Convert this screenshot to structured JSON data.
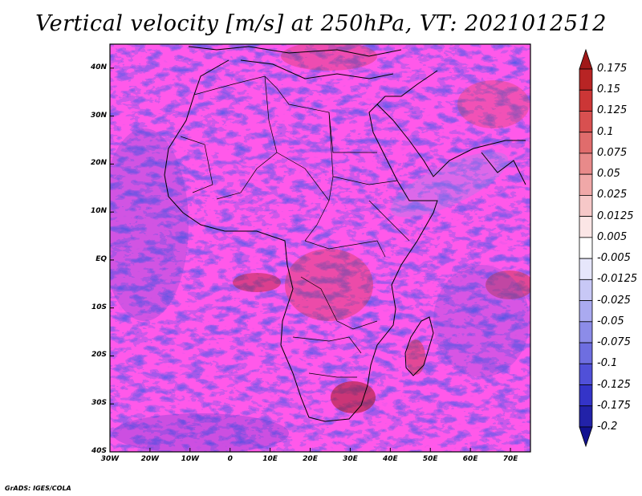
{
  "title": "Vertical velocity [m/s] at 250hPa, VT: 2021012512",
  "footer": "GrADS: IGES/COLA",
  "map": {
    "region": "Africa",
    "lat_range": [
      -40,
      45
    ],
    "lon_range": [
      -30,
      75
    ],
    "lat_ticks": [
      {
        "value": 40,
        "label": "40N"
      },
      {
        "value": 30,
        "label": "30N"
      },
      {
        "value": 20,
        "label": "20N"
      },
      {
        "value": 10,
        "label": "10N"
      },
      {
        "value": 0,
        "label": "EQ"
      },
      {
        "value": -10,
        "label": "10S"
      },
      {
        "value": -20,
        "label": "20S"
      },
      {
        "value": -30,
        "label": "30S"
      },
      {
        "value": -40,
        "label": "40S"
      }
    ],
    "lon_ticks": [
      {
        "value": -30,
        "label": "30W"
      },
      {
        "value": -20,
        "label": "20W"
      },
      {
        "value": -10,
        "label": "10W"
      },
      {
        "value": 0,
        "label": "0"
      },
      {
        "value": 10,
        "label": "10E"
      },
      {
        "value": 20,
        "label": "20E"
      },
      {
        "value": 30,
        "label": "30E"
      },
      {
        "value": 40,
        "label": "40E"
      },
      {
        "value": 50,
        "label": "50E"
      },
      {
        "value": 60,
        "label": "60E"
      },
      {
        "value": 70,
        "label": "70E"
      }
    ]
  },
  "colorbar": {
    "labels": [
      "0.175",
      "0.15",
      "0.125",
      "0.1",
      "0.075",
      "0.05",
      "0.025",
      "0.0125",
      "0.005",
      "-0.005",
      "-0.0125",
      "-0.025",
      "-0.05",
      "-0.075",
      "-0.1",
      "-0.125",
      "-0.175",
      "-0.2"
    ],
    "colors": [
      "#a01818",
      "#b82424",
      "#cc3636",
      "#d85050",
      "#e06c6c",
      "#e88a8a",
      "#f0a8a8",
      "#f6c8c8",
      "#fbe6e6",
      "#ffffff",
      "#e6e6fb",
      "#c8c8f6",
      "#aaaaf0",
      "#8c8ce8",
      "#6e6ee0",
      "#5050d8",
      "#3434c8",
      "#2222a8",
      "#121290"
    ]
  }
}
